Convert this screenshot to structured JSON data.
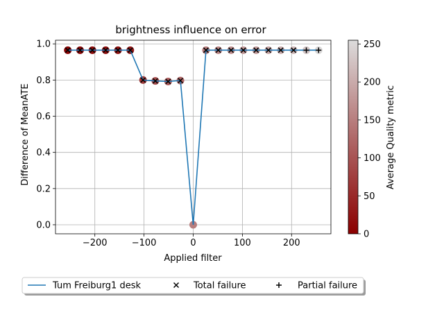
{
  "chart_data": {
    "type": "scatter",
    "title": "brightness influence on error",
    "xlabel": "Applied filter",
    "ylabel": "Difference of MeanATE",
    "xlim": [
      -280,
      280
    ],
    "ylim": [
      -0.05,
      1.02
    ],
    "xticks": [
      -200,
      -100,
      0,
      100,
      200
    ],
    "xtick_labels": [
      "−200",
      "−100",
      "0",
      "100",
      "200"
    ],
    "yticks": [
      0.0,
      0.2,
      0.4,
      0.6,
      0.8,
      1.0
    ],
    "ytick_labels": [
      "0.0",
      "0.2",
      "0.4",
      "0.6",
      "0.8",
      "1.0"
    ],
    "grid": true,
    "series": [
      {
        "name": "Tum Freiburg1 desk",
        "color": "#1f77b4",
        "x": [
          -255,
          -230,
          -205,
          -178,
          -153,
          -128,
          -102,
          -77,
          -51,
          -26,
          0,
          26,
          51,
          77,
          102,
          128,
          153,
          178,
          204,
          230,
          255
        ],
        "y": [
          0.965,
          0.965,
          0.965,
          0.965,
          0.965,
          0.965,
          0.8,
          0.795,
          0.792,
          0.797,
          0.0,
          0.965,
          0.965,
          0.965,
          0.965,
          0.965,
          0.965,
          0.965,
          0.965,
          0.965,
          0.965
        ],
        "quality": [
          5,
          8,
          12,
          15,
          20,
          25,
          70,
          90,
          110,
          120,
          150,
          150,
          160,
          170,
          180,
          185,
          195,
          205,
          215,
          230,
          250
        ],
        "marker": [
          "total",
          "total",
          "total",
          "total",
          "total",
          "total",
          "total",
          "total",
          "total",
          "total",
          "none",
          "total",
          "total",
          "total",
          "total",
          "total",
          "total",
          "total",
          "total",
          "partial",
          "partial"
        ]
      }
    ],
    "legend_entries": [
      {
        "label": "Tum Freiburg1 desk",
        "kind": "line"
      },
      {
        "label": "Total failure",
        "kind": "x"
      },
      {
        "label": "Partial failure",
        "kind": "plus"
      }
    ],
    "legend_placement": "below plot",
    "colorbar": {
      "label": "Average Quality metric",
      "range": [
        0,
        255
      ],
      "ticks": [
        0,
        50,
        100,
        150,
        200,
        250
      ],
      "tick_labels": [
        "0",
        "50",
        "100",
        "150",
        "200",
        "250"
      ],
      "colors": [
        "#8b0000",
        "#b06a6a",
        "#dcdcdc"
      ]
    }
  }
}
